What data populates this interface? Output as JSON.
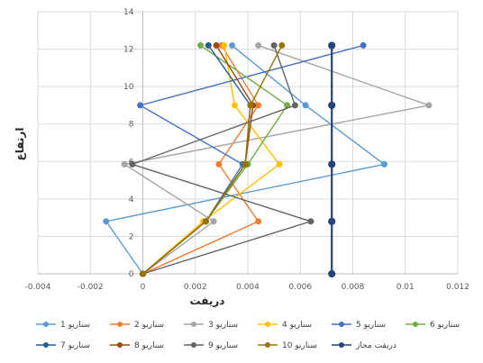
{
  "chart_data": {
    "type": "line",
    "xlabel": "دریفت",
    "ylabel": "ارتفاع",
    "xlim": [
      -0.004,
      0.012
    ],
    "ylim": [
      0,
      14
    ],
    "x_ticks": [
      "-0.004",
      "-0.002",
      "0",
      "0.002",
      "0.004",
      "0.006",
      "0.008",
      "0.01",
      "0.012"
    ],
    "y_ticks": [
      "0",
      "2",
      "4",
      "6",
      "8",
      "10",
      "12",
      "14"
    ],
    "grid": "horizontal and vertical major gridlines",
    "legend_position": "bottom",
    "series": [
      {
        "name": "سناریو 1",
        "color": "#5B9BD5",
        "points": [
          [
            0,
            0
          ],
          [
            -0.0014,
            2.8
          ],
          [
            0.0092,
            5.85
          ],
          [
            0.0062,
            9
          ],
          [
            0.0034,
            12.2
          ]
        ]
      },
      {
        "name": "سناریو 2",
        "color": "#ED7D31",
        "points": [
          [
            0,
            0
          ],
          [
            0.0044,
            2.8
          ],
          [
            0.0029,
            5.85
          ],
          [
            0.0044,
            9
          ],
          [
            0.003,
            12.2
          ]
        ]
      },
      {
        "name": "سناریو 3",
        "color": "#A5A5A5",
        "points": [
          [
            0,
            0
          ],
          [
            0.0027,
            2.8
          ],
          [
            -0.0007,
            5.85
          ],
          [
            0.0109,
            9
          ],
          [
            0.0044,
            12.2
          ]
        ]
      },
      {
        "name": "سناریو 4",
        "color": "#FFC000",
        "points": [
          [
            0,
            0
          ],
          [
            0.0023,
            2.8
          ],
          [
            0.0052,
            5.85
          ],
          [
            0.0035,
            9
          ],
          [
            0.0031,
            12.2
          ]
        ]
      },
      {
        "name": "سناریو 5",
        "color": "#4472C4",
        "points": [
          [
            0,
            0
          ],
          [
            0.0024,
            2.8
          ],
          [
            0.0038,
            5.85
          ],
          [
            -0.0001,
            9
          ],
          [
            0.0084,
            12.2
          ]
        ]
      },
      {
        "name": "سناریو 6",
        "color": "#70AD47",
        "points": [
          [
            0,
            0
          ],
          [
            0.0024,
            2.8
          ],
          [
            0.004,
            5.85
          ],
          [
            0.0055,
            9
          ],
          [
            0.0022,
            12.2
          ]
        ]
      },
      {
        "name": "سناریو 7",
        "color": "#255E91",
        "points": [
          [
            0,
            0
          ],
          [
            0.0024,
            2.8
          ],
          [
            0.0039,
            5.85
          ],
          [
            0.0041,
            9
          ],
          [
            0.0025,
            12.2
          ]
        ]
      },
      {
        "name": "سناریو 8",
        "color": "#9E480E",
        "points": [
          [
            0,
            0
          ],
          [
            0.0024,
            2.8
          ],
          [
            0.0039,
            5.85
          ],
          [
            0.0042,
            9
          ],
          [
            0.0028,
            12.2
          ]
        ]
      },
      {
        "name": "سناریو 9",
        "color": "#636363",
        "points": [
          [
            0,
            0
          ],
          [
            0.0064,
            2.8
          ],
          [
            -0.0004,
            5.85
          ],
          [
            0.0058,
            9
          ],
          [
            0.005,
            12.2
          ]
        ]
      },
      {
        "name": "سناریو 10",
        "color": "#997300",
        "points": [
          [
            0,
            0
          ],
          [
            0.0024,
            2.8
          ],
          [
            0.0039,
            5.85
          ],
          [
            0.0041,
            9
          ],
          [
            0.0053,
            12.2
          ]
        ]
      },
      {
        "name": "دریفت مجاز",
        "color": "#264478",
        "points": [
          [
            0.0072,
            0
          ],
          [
            0.0072,
            2.8
          ],
          [
            0.0072,
            5.85
          ],
          [
            0.0072,
            9
          ],
          [
            0.0072,
            12.2
          ]
        ]
      }
    ]
  }
}
